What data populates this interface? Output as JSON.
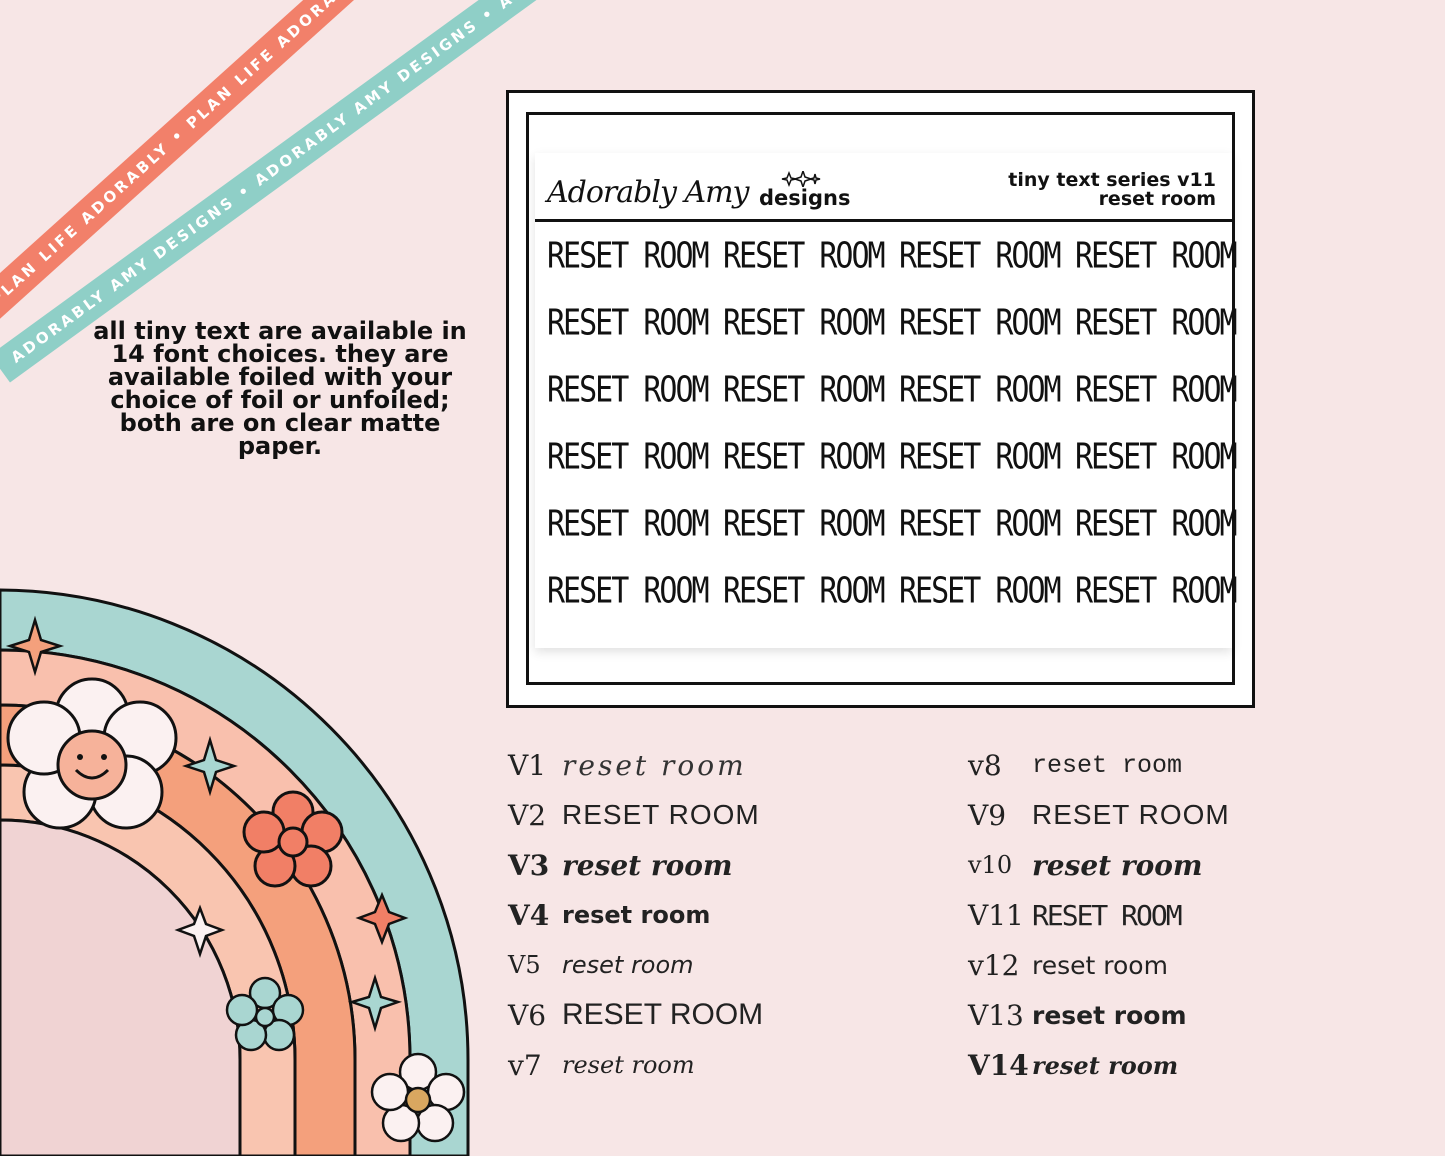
{
  "ribbons": {
    "orange_text": "PLAN LIFE ADORABLY • PLAN LIFE ADORABLY • PLAN LIFE ADORABLY",
    "teal_text": "ADORABLY AMY DESIGNS • ADORABLY AMY DESIGNS • ADORABLY AMY DESIGNS"
  },
  "blurb": {
    "text": "all tiny text are available in 14 font choices. they are available foiled with your choice of foil or unfoiled; both are on clear matte paper."
  },
  "sheet": {
    "brand_script": "Adorably Amy",
    "brand_sub": "designs",
    "series_title": "tiny text series v11",
    "series_subtitle": "reset room",
    "cells": [
      "RESET ROOM",
      "RESET ROOM",
      "RESET ROOM",
      "RESET ROOM",
      "RESET ROOM",
      "RESET ROOM",
      "RESET ROOM",
      "RESET ROOM",
      "RESET ROOM",
      "RESET ROOM",
      "RESET ROOM",
      "RESET ROOM",
      "RESET ROOM",
      "RESET ROOM",
      "RESET ROOM",
      "RESET ROOM",
      "RESET ROOM",
      "RESET ROOM",
      "RESET ROOM",
      "RESET ROOM",
      "RESET ROOM",
      "RESET ROOM",
      "RESET ROOM",
      "RESET ROOM"
    ]
  },
  "fonts_left": [
    {
      "code": "V1",
      "sample": "reset room"
    },
    {
      "code": "V2",
      "sample": "RESET ROOM"
    },
    {
      "code": "V3",
      "sample": "reset room"
    },
    {
      "code": "V4",
      "sample": "reset room"
    },
    {
      "code": "V5",
      "sample": "reset room"
    },
    {
      "code": "V6",
      "sample": "RESET ROOM"
    },
    {
      "code": "v7",
      "sample": "reset room"
    }
  ],
  "fonts_right": [
    {
      "code": "v8",
      "sample": "reset room"
    },
    {
      "code": "V9",
      "sample": "RESET ROOM"
    },
    {
      "code": "v10",
      "sample": "reset room"
    },
    {
      "code": "V11",
      "sample": "RESET ROOM"
    },
    {
      "code": "v12",
      "sample": "reset room"
    },
    {
      "code": "V13",
      "sample": "reset room"
    },
    {
      "code": "V14",
      "sample": "reset room"
    }
  ],
  "colors": {
    "background": "#f7e6e6",
    "orange": "#f2806a",
    "teal": "#8fcfc7",
    "peach": "#f9b49c",
    "light_pink": "#f0cfd0"
  }
}
